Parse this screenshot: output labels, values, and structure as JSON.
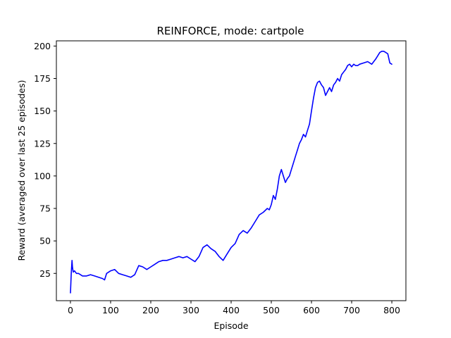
{
  "chart_data": {
    "type": "line",
    "title": "REINFORCE, mode: cartpole",
    "xlabel": "Episode",
    "ylabel": "Reward (averaged over last 25 episodes)",
    "xlim": [
      -35,
      835
    ],
    "ylim": [
      4,
      204
    ],
    "xticks": [
      0,
      100,
      200,
      300,
      400,
      500,
      600,
      700,
      800
    ],
    "yticks": [
      25,
      50,
      75,
      100,
      125,
      150,
      175,
      200
    ],
    "grid": false,
    "series": [
      {
        "color": "#0000ff",
        "x": [
          0,
          2,
          4,
          5,
          7,
          10,
          15,
          20,
          30,
          40,
          50,
          60,
          70,
          80,
          85,
          90,
          100,
          110,
          120,
          130,
          140,
          150,
          160,
          170,
          180,
          190,
          200,
          210,
          220,
          230,
          240,
          250,
          260,
          270,
          280,
          290,
          300,
          310,
          320,
          330,
          340,
          350,
          360,
          370,
          380,
          390,
          400,
          410,
          420,
          430,
          440,
          450,
          460,
          470,
          480,
          490,
          495,
          500,
          505,
          510,
          515,
          520,
          525,
          530,
          535,
          540,
          545,
          550,
          555,
          560,
          565,
          570,
          575,
          580,
          585,
          590,
          595,
          600,
          605,
          610,
          615,
          620,
          625,
          630,
          635,
          640,
          645,
          650,
          655,
          660,
          665,
          670,
          675,
          680,
          685,
          690,
          695,
          700,
          705,
          710,
          715,
          720,
          730,
          740,
          750,
          760,
          770,
          775,
          780,
          785,
          790,
          795,
          800
        ],
        "y": [
          10,
          25,
          35,
          30,
          26,
          27,
          25,
          25,
          23,
          23,
          24,
          23,
          22,
          21,
          20,
          25,
          27,
          28,
          25,
          24,
          23,
          22,
          24,
          31,
          30,
          28,
          30,
          32,
          34,
          35,
          35,
          36,
          37,
          38,
          37,
          38,
          36,
          34,
          38,
          45,
          47,
          44,
          42,
          38,
          35,
          40,
          45,
          48,
          55,
          58,
          56,
          60,
          65,
          70,
          72,
          75,
          74,
          78,
          85,
          82,
          90,
          100,
          105,
          100,
          95,
          98,
          100,
          105,
          110,
          115,
          120,
          125,
          128,
          132,
          130,
          135,
          140,
          150,
          160,
          168,
          172,
          173,
          170,
          168,
          162,
          165,
          168,
          165,
          170,
          172,
          175,
          173,
          178,
          180,
          182,
          185,
          186,
          184,
          186,
          185,
          185,
          186,
          187,
          188,
          186,
          190,
          195,
          196,
          196,
          195,
          194,
          187,
          186
        ]
      }
    ]
  }
}
